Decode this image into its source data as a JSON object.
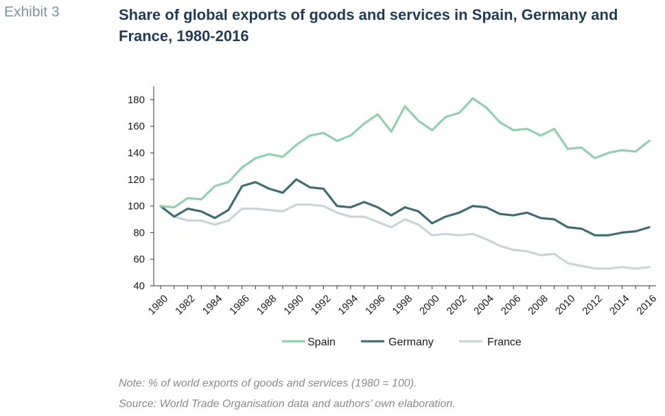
{
  "header": {
    "exhibit": "Exhibit 3",
    "title": "Share of global exports of goods and services in Spain, Germany and France, 1980-2016"
  },
  "notes": {
    "note": "Note: % of world exports of goods and services (1980 = 100).",
    "source": "Source: World Trade Organisation data and authors’ own elaboration."
  },
  "chart_data": {
    "type": "line",
    "title": "Share of global exports of goods and services in Spain, Germany and France, 1980-2016",
    "xlabel": "",
    "ylabel": "",
    "x": [
      1980,
      1981,
      1982,
      1983,
      1984,
      1985,
      1986,
      1987,
      1988,
      1989,
      1990,
      1991,
      1992,
      1993,
      1994,
      1995,
      1996,
      1997,
      1998,
      1999,
      2000,
      2001,
      2002,
      2003,
      2004,
      2005,
      2006,
      2007,
      2008,
      2009,
      2010,
      2011,
      2012,
      2013,
      2014,
      2015,
      2016
    ],
    "x_tick_labels": [
      "1980",
      "1982",
      "1984",
      "1986",
      "1988",
      "1990",
      "1992",
      "1994",
      "1996",
      "1998",
      "2000",
      "2002",
      "2004",
      "2006",
      "2008",
      "2010",
      "2012",
      "2014",
      "2016"
    ],
    "ylim": [
      40,
      190
    ],
    "y_ticks": [
      40,
      60,
      80,
      100,
      120,
      140,
      160,
      180
    ],
    "grid": false,
    "legend_position": "bottom",
    "series": [
      {
        "name": "Spain",
        "color": "#8fd1ad",
        "values": [
          100,
          99,
          106,
          105,
          115,
          118,
          129,
          136,
          139,
          137,
          146,
          153,
          155,
          149,
          153,
          162,
          169,
          156,
          175,
          164,
          157,
          167,
          170,
          181,
          174,
          163,
          157,
          158,
          153,
          158,
          143,
          144,
          136,
          140,
          142,
          141,
          149
        ]
      },
      {
        "name": "Germany",
        "color": "#3e6c73",
        "values": [
          100,
          92,
          98,
          96,
          91,
          97,
          115,
          118,
          113,
          110,
          120,
          114,
          113,
          100,
          99,
          103,
          99,
          93,
          99,
          96,
          87,
          92,
          95,
          100,
          99,
          94,
          93,
          95,
          91,
          90,
          84,
          83,
          78,
          78,
          80,
          81,
          84
        ]
      },
      {
        "name": "France",
        "color": "#c9d4d8",
        "values": [
          100,
          92,
          89,
          89,
          86,
          89,
          98,
          98,
          97,
          96,
          101,
          101,
          100,
          95,
          92,
          92,
          88,
          84,
          90,
          86,
          78,
          79,
          78,
          79,
          75,
          70,
          67,
          66,
          63,
          64,
          57,
          55,
          53,
          53,
          54,
          53,
          54
        ]
      }
    ]
  }
}
